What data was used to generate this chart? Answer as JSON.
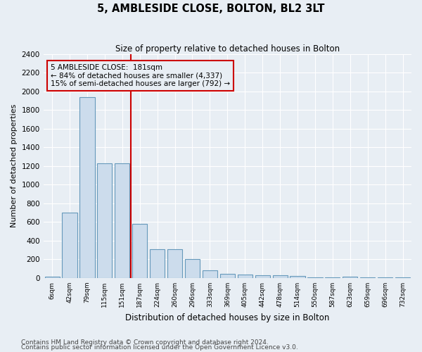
{
  "title": "5, AMBLESIDE CLOSE, BOLTON, BL2 3LT",
  "subtitle": "Size of property relative to detached houses in Bolton",
  "xlabel": "Distribution of detached houses by size in Bolton",
  "ylabel": "Number of detached properties",
  "bar_color": "#ccdcec",
  "bar_edge_color": "#6699bb",
  "bar_edge_width": 0.8,
  "categories": [
    "6sqm",
    "42sqm",
    "79sqm",
    "115sqm",
    "151sqm",
    "187sqm",
    "224sqm",
    "260sqm",
    "296sqm",
    "333sqm",
    "369sqm",
    "405sqm",
    "442sqm",
    "478sqm",
    "514sqm",
    "550sqm",
    "587sqm",
    "623sqm",
    "659sqm",
    "696sqm",
    "732sqm"
  ],
  "values": [
    15,
    700,
    1935,
    1225,
    1225,
    580,
    310,
    310,
    205,
    80,
    45,
    35,
    30,
    30,
    20,
    8,
    5,
    15,
    5,
    5,
    8
  ],
  "property_line_color": "#cc0000",
  "annotation_line1": "5 AMBLESIDE CLOSE:  181sqm",
  "annotation_line2": "← 84% of detached houses are smaller (4,337)",
  "annotation_line3": "15% of semi-detached houses are larger (792) →",
  "annotation_box_color": "#cc0000",
  "ylim": [
    0,
    2400
  ],
  "yticks": [
    0,
    200,
    400,
    600,
    800,
    1000,
    1200,
    1400,
    1600,
    1800,
    2000,
    2200,
    2400
  ],
  "footnote1": "Contains HM Land Registry data © Crown copyright and database right 2024.",
  "footnote2": "Contains public sector information licensed under the Open Government Licence v3.0.",
  "background_color": "#e8eef4",
  "grid_color": "#ffffff"
}
